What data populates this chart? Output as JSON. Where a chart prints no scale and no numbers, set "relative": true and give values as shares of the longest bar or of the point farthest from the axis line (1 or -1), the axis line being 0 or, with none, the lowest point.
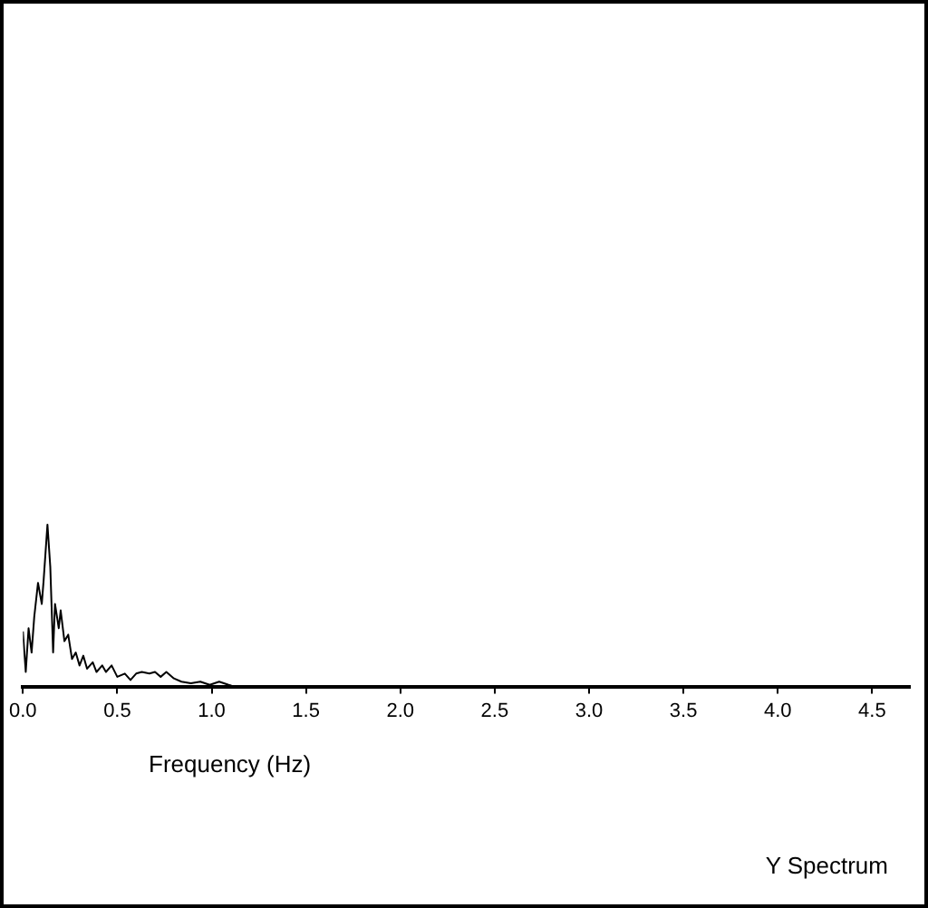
{
  "chart_data": {
    "type": "line",
    "title": "Y Spectrum",
    "xlabel": "Frequency (Hz)",
    "relative": true,
    "grid": false,
    "legend": false,
    "marker": "none",
    "line_style": "solid",
    "xlim": [
      0,
      4.7
    ],
    "xticks": [
      {
        "value": 0,
        "label": "0.0"
      },
      0.5,
      {
        "value": 1,
        "label": "1.0"
      },
      1.5,
      {
        "value": 2,
        "label": "2.0"
      },
      2.5,
      {
        "value": 3,
        "label": "3.0"
      },
      3.5,
      {
        "value": 4,
        "label": "4.0"
      },
      4.5
    ],
    "series": [
      {
        "color": "#000000",
        "x": [
          0,
          0.015,
          0.03,
          0.046,
          0.06,
          0.08,
          0.1,
          0.11,
          0.13,
          0.145,
          0.16,
          0.17,
          0.19,
          0.2,
          0.22,
          0.24,
          0.26,
          0.28,
          0.3,
          0.32,
          0.34,
          0.37,
          0.39,
          0.42,
          0.44,
          0.47,
          0.5,
          0.54,
          0.57,
          0.6,
          0.63,
          0.67,
          0.7,
          0.73,
          0.76,
          0.8,
          0.84,
          0.89,
          0.94,
          0.99,
          1.04,
          1.09,
          1.12
        ],
        "values": [
          0.34,
          0.09,
          0.36,
          0.21,
          0.43,
          0.64,
          0.51,
          0.66,
          1,
          0.74,
          0.21,
          0.51,
          0.36,
          0.47,
          0.28,
          0.32,
          0.17,
          0.21,
          0.13,
          0.19,
          0.11,
          0.15,
          0.09,
          0.13,
          0.09,
          0.13,
          0.06,
          0.08,
          0.04,
          0.08,
          0.09,
          0.08,
          0.09,
          0.06,
          0.09,
          0.05,
          0.03,
          0.02,
          0.03,
          0.01,
          0.03,
          0.01,
          0
        ]
      }
    ]
  }
}
